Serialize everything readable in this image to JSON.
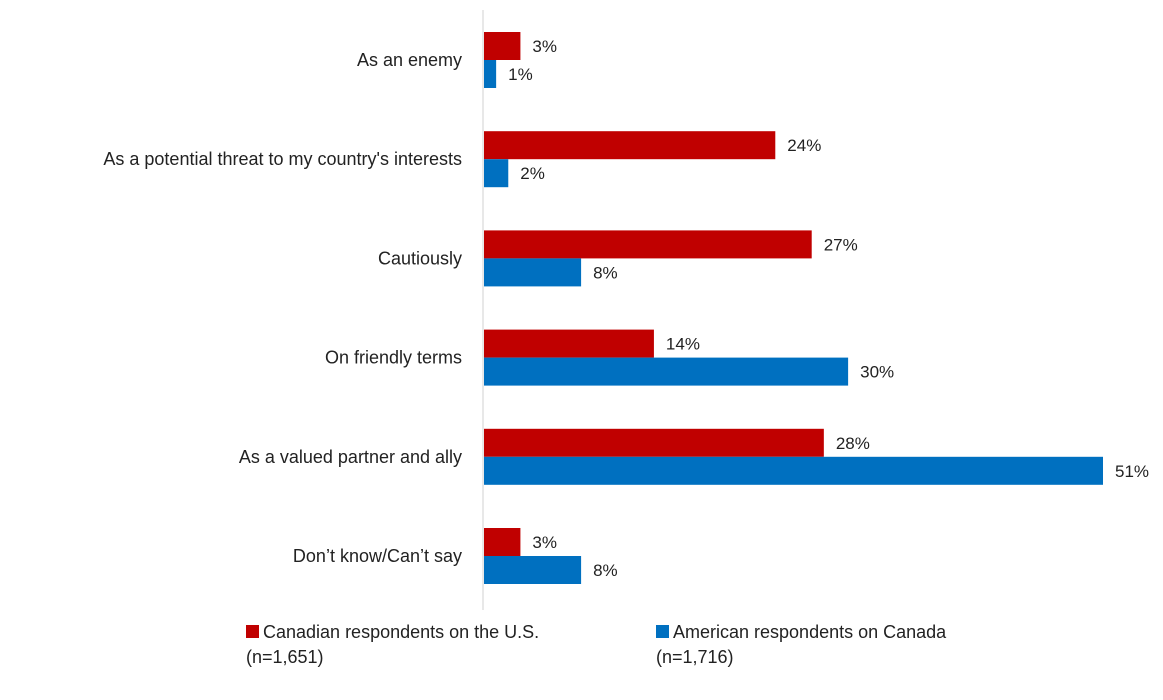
{
  "chart_data": {
    "type": "bar",
    "orientation": "horizontal",
    "categories": [
      "As an enemy",
      "As a potential threat to my country's interests",
      "Cautiously",
      "On friendly terms",
      "As a valued partner and ally",
      "Don’t know/Can’t say"
    ],
    "series": [
      {
        "name": "Canadian respondents on the U.S.",
        "note": "(n=1,651)",
        "color": "#C00000",
        "values": [
          3,
          24,
          27,
          14,
          28,
          3
        ],
        "labels": [
          "3%",
          "24%",
          "27%",
          "14%",
          "28%",
          "3%"
        ]
      },
      {
        "name": "American respondents on Canada",
        "note": "(n=1,716)",
        "color": "#0070C0",
        "values": [
          1,
          2,
          8,
          30,
          51,
          8
        ],
        "labels": [
          "1%",
          "2%",
          "8%",
          "30%",
          "51%",
          "8%"
        ]
      }
    ],
    "xlim": [
      0,
      51
    ],
    "grid": false,
    "legend_position": "bottom"
  }
}
